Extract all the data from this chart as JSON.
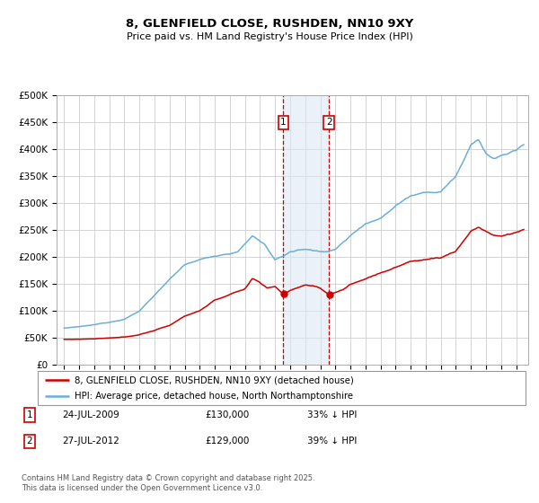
{
  "title": "8, GLENFIELD CLOSE, RUSHDEN, NN10 9XY",
  "subtitle": "Price paid vs. HM Land Registry's House Price Index (HPI)",
  "ylabel_ticks": [
    "£0",
    "£50K",
    "£100K",
    "£150K",
    "£200K",
    "£250K",
    "£300K",
    "£350K",
    "£400K",
    "£450K",
    "£500K"
  ],
  "ylim": [
    0,
    500000
  ],
  "xlim_start": 1994.5,
  "xlim_end": 2025.8,
  "marker1_x": 2009.55,
  "marker2_x": 2012.57,
  "legend_line1": "8, GLENFIELD CLOSE, RUSHDEN, NN10 9XY (detached house)",
  "legend_line2": "HPI: Average price, detached house, North Northamptonshire",
  "table_rows": [
    {
      "num": "1",
      "date": "24-JUL-2009",
      "price": "£130,000",
      "pct": "33% ↓ HPI"
    },
    {
      "num": "2",
      "date": "27-JUL-2012",
      "price": "£129,000",
      "pct": "39% ↓ HPI"
    }
  ],
  "footnote": "Contains HM Land Registry data © Crown copyright and database right 2025.\nThis data is licensed under the Open Government Licence v3.0.",
  "hpi_color": "#6baed6",
  "price_color": "#cc0000",
  "grid_color": "#cccccc",
  "background_color": "#ffffff",
  "shade_color": "#dce9f5"
}
